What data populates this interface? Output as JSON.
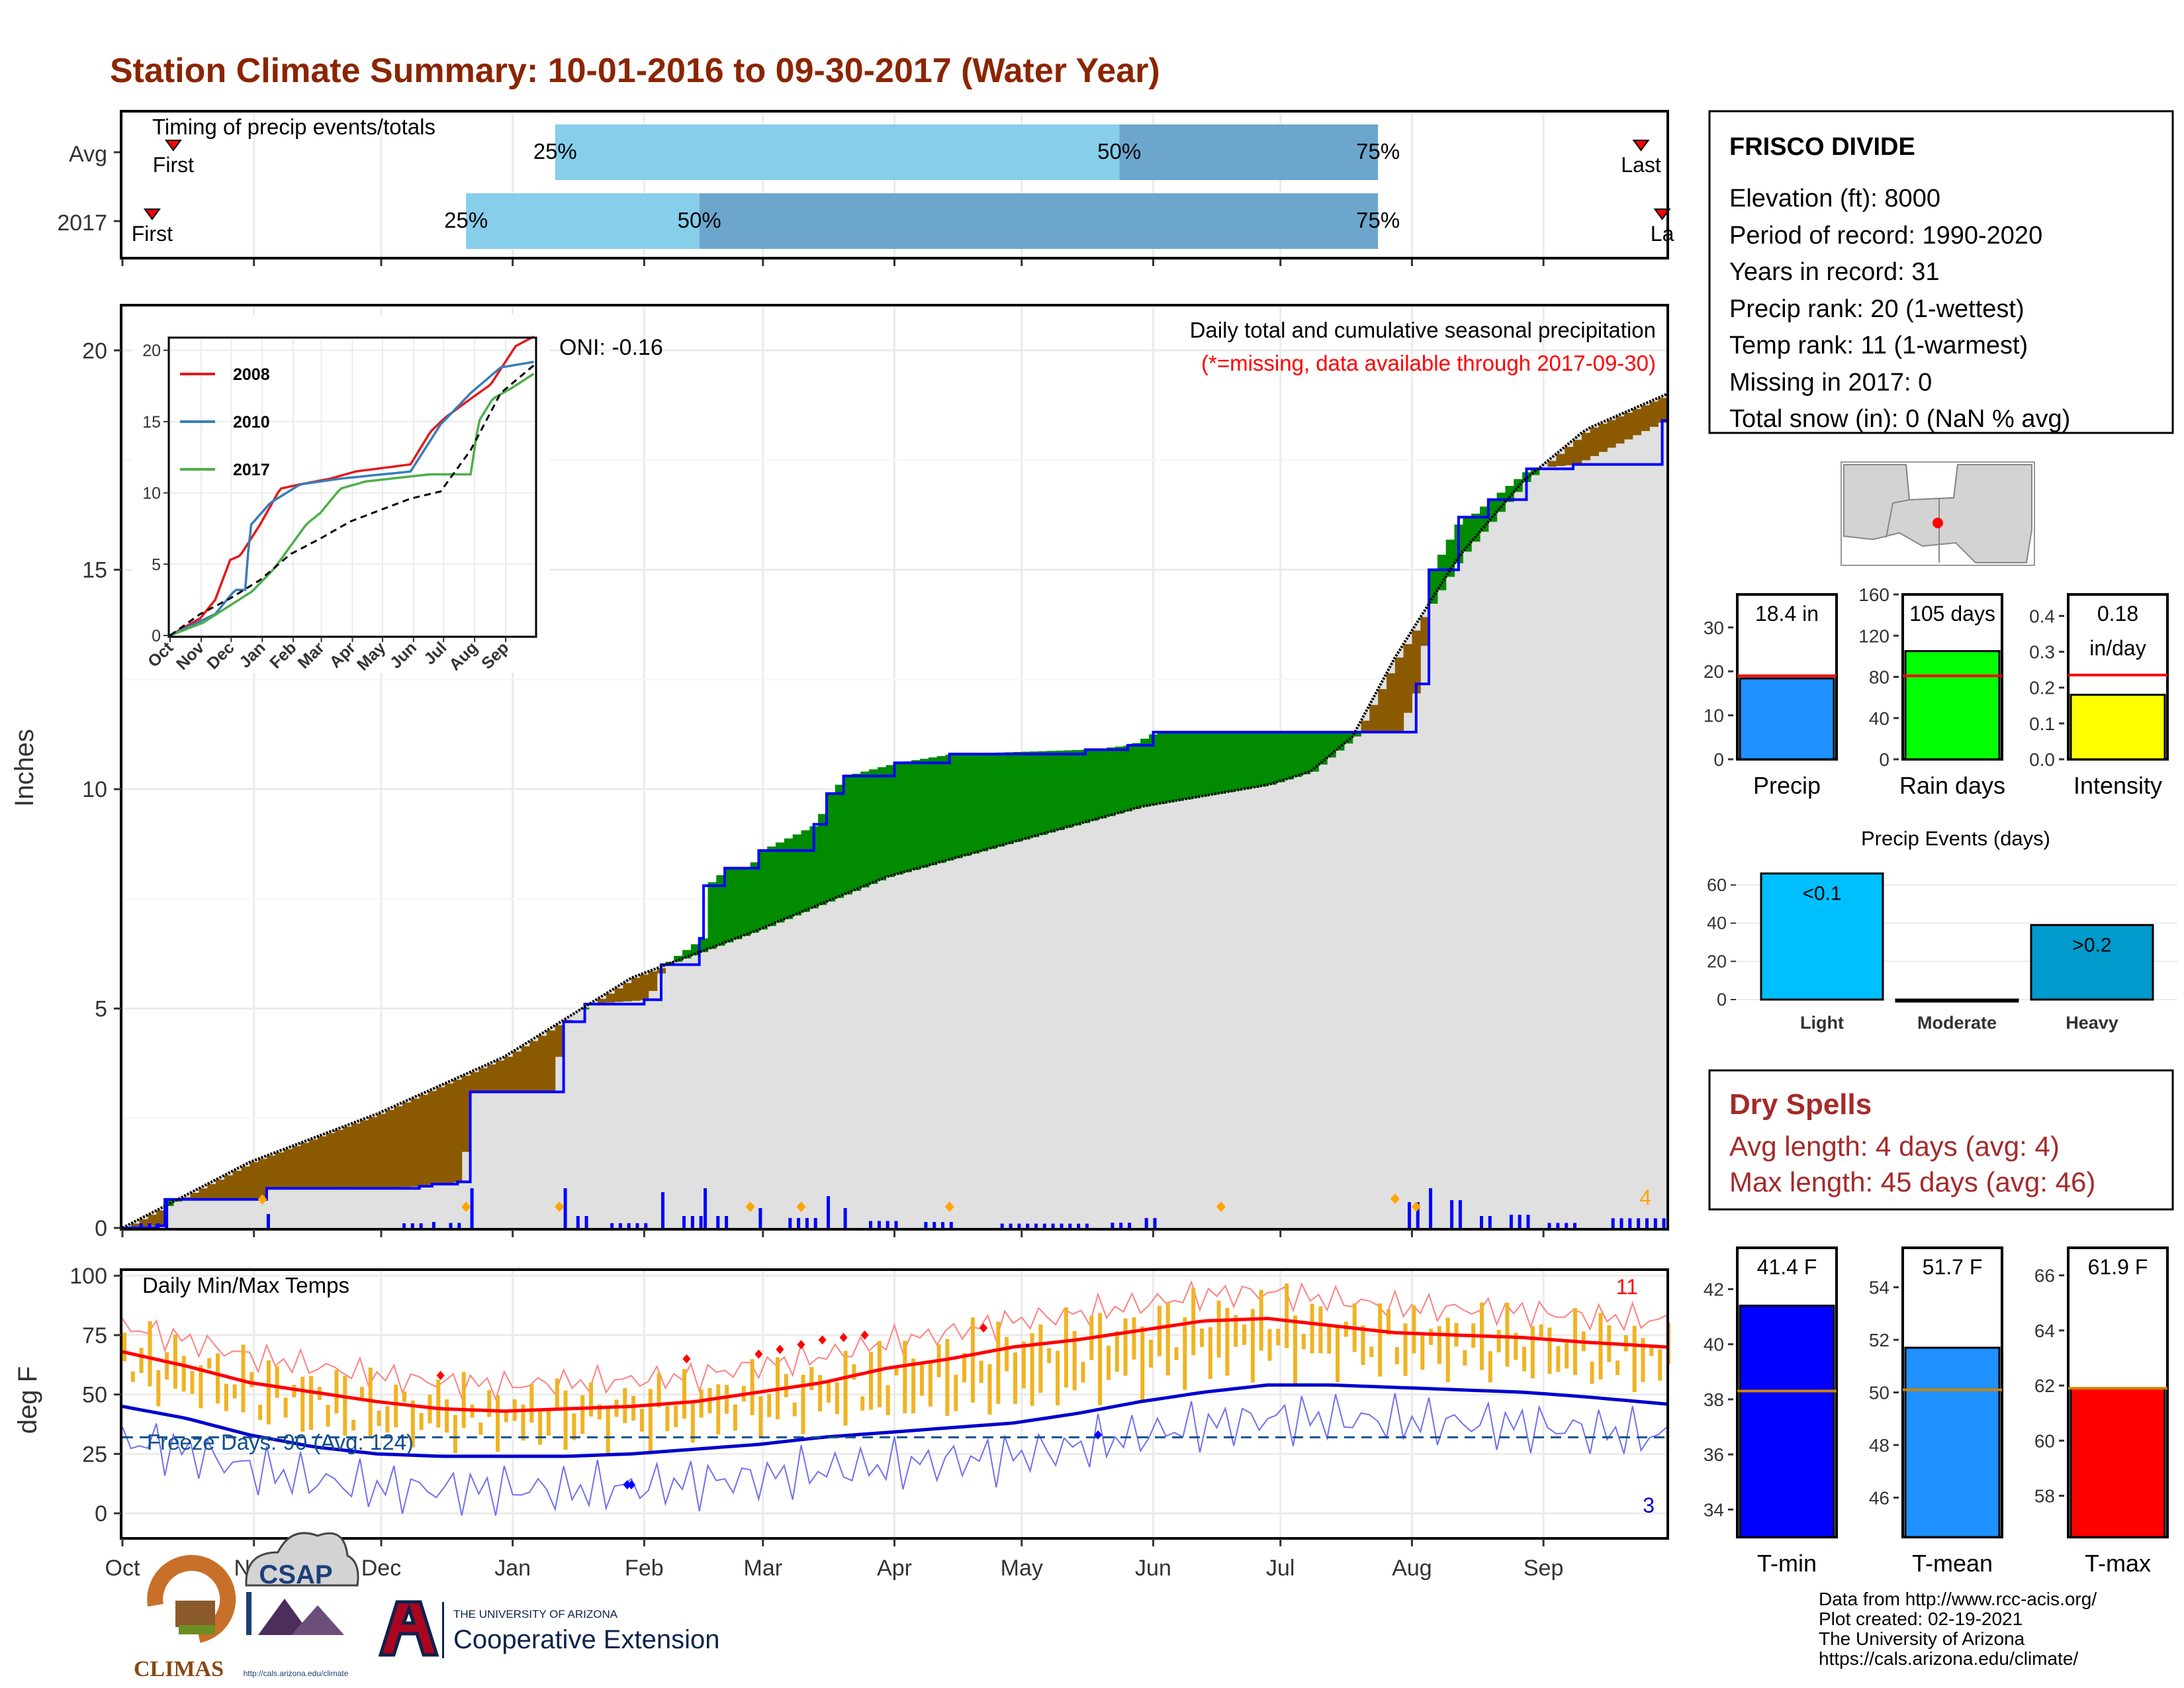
{
  "title": "Station Climate Summary: 10-01-2016 to 09-30-2017 (Water Year)",
  "colors": {
    "title": "#8B2500",
    "q_light": "#87CEEB",
    "q_dark": "#6CA6CD",
    "above_avg": "#008B00",
    "below_avg": "#8B5A00",
    "avg_fill": "#E0E0E0",
    "daily_precip": "#0000FF",
    "temp_range": "#F0B323",
    "tmax_line": "#FF0000",
    "tmin_line": "#0000CD",
    "tmin_bar": "#0000FF",
    "tmean_bar": "#1E90FF",
    "tmax_bar": "#FF0000",
    "precip_bar": "#1E90FF",
    "raindays_bar": "#00FF00",
    "intensity_bar": "#FFFF00",
    "events_light": "#00BFFF",
    "events_heavy": "#009ACD",
    "dry_spell_text": "#A52A2A"
  },
  "timing": {
    "heading": "Timing of precip events/totals",
    "rows": [
      {
        "label": "Avg",
        "first": "First",
        "last": "Last",
        "p25": "25%",
        "p50": "50%",
        "p75": "75%",
        "first_day": 12,
        "p25_day": 102,
        "p50_day": 235,
        "p75_day": 296,
        "last_day": 358
      },
      {
        "label": "2017",
        "first": "First",
        "last": "La",
        "p25": "25%",
        "p50": "50%",
        "p75": "75%",
        "first_day": 7,
        "p25_day": 81,
        "p50_day": 136,
        "p75_day": 296,
        "last_day": 363
      }
    ]
  },
  "main": {
    "ylabel": "Inches",
    "oni": "ONI: -0.16",
    "caption": "Daily total and cumulative seasonal precipitation",
    "caption2": "(*=missing, data available through 2017-09-30)",
    "count_label": "4",
    "y_ticks": [
      "0",
      "5",
      "10",
      "15",
      "20"
    ]
  },
  "months": [
    "Oct",
    "Nov",
    "Dec",
    "Jan",
    "Feb",
    "Mar",
    "Apr",
    "May",
    "Jun",
    "Jul",
    "Aug",
    "Sep"
  ],
  "inset": {
    "legend": [
      "2008",
      "2010",
      "2017"
    ],
    "legend_colors": [
      "#E41A1C",
      "#377EB8",
      "#4DAF4A"
    ],
    "y_ticks": [
      "0",
      "5",
      "10",
      "15",
      "20"
    ],
    "months": [
      "Oct",
      "Nov",
      "Dec",
      "Jan",
      "Feb",
      "Mar",
      "Apr",
      "May",
      "Jun",
      "Jul",
      "Aug",
      "Sep"
    ]
  },
  "temps": {
    "ylabel": "deg F",
    "heading": "Daily Min/Max Temps",
    "freeze": "Freeze Days: 90 (Avg: 124)",
    "count_high": "11",
    "count_low": "3",
    "y_ticks": [
      "0",
      "25",
      "50",
      "75",
      "100"
    ]
  },
  "station": {
    "name": "FRISCO DIVIDE",
    "lines": [
      "Elevation (ft): 8000",
      "Period of record: 1990-2020",
      "Years in record: 31",
      "Precip rank: 20 (1-wettest)",
      "Temp rank: 11 (1-warmest)",
      "Missing in 2017: 0",
      "Total snow (in): 0 (NaN % avg)"
    ]
  },
  "stats": [
    {
      "name": "Precip",
      "value_label": "18.4 in",
      "value": 18.4,
      "avg": 19,
      "ymin": 0,
      "ymax": 37.5,
      "ticks": [
        "0",
        "10",
        "20",
        "30"
      ],
      "tick_vals": [
        0,
        10,
        20,
        30
      ],
      "color": "#1E90FF"
    },
    {
      "name": "Rain days",
      "value_label": "105 days",
      "value": 105,
      "avg": 81,
      "ymin": 0,
      "ymax": 160,
      "ticks": [
        "0",
        "40",
        "80",
        "120",
        "160"
      ],
      "tick_vals": [
        0,
        40,
        80,
        120,
        160
      ],
      "color": "#00FF00"
    },
    {
      "name": "Intensity",
      "value_label": "0.18",
      "value_label2": "in/day",
      "value": 0.18,
      "avg": 0.235,
      "ymin": 0,
      "ymax": 0.46,
      "ticks": [
        "0.0",
        "0.1",
        "0.2",
        "0.3",
        "0.4"
      ],
      "tick_vals": [
        0,
        0.1,
        0.2,
        0.3,
        0.4
      ],
      "color": "#FFFF00"
    }
  ],
  "events": {
    "title": "Precip Events (days)",
    "categories": [
      "Light",
      "Moderate",
      "Heavy"
    ],
    "values": [
      66,
      0,
      39
    ],
    "labels": [
      "<0.1",
      "",
      ">0.2"
    ],
    "y_ticks": [
      "0",
      "20",
      "40",
      "60"
    ]
  },
  "dry_spells": {
    "title": "Dry Spells",
    "avg_line": "Avg length: 4 days (avg: 4)",
    "max_line": "Max length: 45 days (avg: 46)"
  },
  "temp_stats": [
    {
      "name": "T-min",
      "value_label": "41.4 F",
      "value": 41.4,
      "avg": 38.3,
      "ymin": 33,
      "ymax": 43.5,
      "ticks": [
        "34",
        "36",
        "38",
        "40",
        "42"
      ],
      "tick_vals": [
        34,
        36,
        38,
        40,
        42
      ],
      "color": "#0000FF"
    },
    {
      "name": "T-mean",
      "value_label": "51.7 F",
      "value": 51.7,
      "avg": 50.1,
      "ymin": 44.5,
      "ymax": 55.5,
      "ticks": [
        "46",
        "48",
        "50",
        "52",
        "54"
      ],
      "tick_vals": [
        46,
        48,
        50,
        52,
        54
      ],
      "color": "#1E90FF"
    },
    {
      "name": "T-max",
      "value_label": "61.9 F",
      "value": 61.9,
      "avg": 61.9,
      "ymin": 56.5,
      "ymax": 67,
      "ticks": [
        "58",
        "60",
        "62",
        "64",
        "66"
      ],
      "tick_vals": [
        58,
        60,
        62,
        64,
        66
      ],
      "color": "#FF0000"
    }
  ],
  "footer": {
    "lines": [
      "Data from http://www.rcc-acis.org/",
      "Plot created: 02-19-2021",
      "The University of Arizona",
      "https://cals.arizona.edu/climate/"
    ],
    "climas": "CLIMAS",
    "csap": "CSAP",
    "csap_url": "http://cals.arizona.edu/climate",
    "ua_small": "THE UNIVERSITY OF ARIZONA",
    "ua_big": "Cooperative Extension"
  },
  "chart_data": [
    {
      "type": "area",
      "title": "Daily total and cumulative seasonal precipitation",
      "ylabel": "Inches",
      "ylim": [
        0,
        21
      ],
      "x_unit": "day of water year (Oct 1 = 0)",
      "series": [
        {
          "name": "2017 cumulative",
          "x": [
            0,
            8,
            10,
            33,
            34,
            60,
            70,
            73,
            79,
            82,
            100,
            104,
            109,
            123,
            127,
            136,
            137,
            142,
            147,
            150,
            163,
            166,
            170,
            182,
            195,
            227,
            237,
            243,
            245,
            259,
            300,
            305,
            308,
            315,
            317,
            322,
            331,
            342,
            363,
            364
          ],
          "y": [
            0,
            0.05,
            0.65,
            0.65,
            0.9,
            0.9,
            0.95,
            1.0,
            1.05,
            3.1,
            3.1,
            4.7,
            5.1,
            5.2,
            6.0,
            6.6,
            7.8,
            8.2,
            8.2,
            8.6,
            9.2,
            9.9,
            10.3,
            10.6,
            10.8,
            10.9,
            11.0,
            11.3,
            11.3,
            11.3,
            11.3,
            12.4,
            15.0,
            16.2,
            16.2,
            16.6,
            17.3,
            17.4,
            18.4,
            18.4
          ]
        },
        {
          "name": "Avg cumulative",
          "x": [
            0,
            30,
            60,
            90,
            120,
            150,
            180,
            210,
            240,
            270,
            280,
            290,
            300,
            315,
            330,
            345,
            364
          ],
          "y": [
            0,
            1.5,
            2.6,
            3.9,
            5.7,
            6.8,
            8.0,
            8.8,
            9.6,
            10.1,
            10.4,
            11.2,
            13.0,
            15.3,
            17.0,
            18.2,
            19.0
          ]
        }
      ]
    },
    {
      "type": "line",
      "title": "",
      "ylim": [
        0,
        21
      ],
      "series": [
        {
          "name": "2008",
          "x": [
            0,
            30,
            45,
            60,
            70,
            90,
            110,
            130,
            160,
            185,
            240,
            260,
            275,
            300,
            320,
            345,
            364
          ],
          "y": [
            0,
            1.2,
            2.5,
            5.3,
            5.6,
            7.8,
            10.3,
            10.6,
            11.0,
            11.5,
            12.0,
            14.3,
            15.3,
            16.6,
            17.6,
            20.3,
            21.0
          ]
        },
        {
          "name": "2010",
          "x": [
            0,
            45,
            65,
            75,
            80,
            100,
            130,
            170,
            240,
            270,
            300,
            330,
            364
          ],
          "y": [
            0,
            1.5,
            3.2,
            3.2,
            7.7,
            9.3,
            10.6,
            11.0,
            11.5,
            14.8,
            17.0,
            18.8,
            19.2
          ]
        },
        {
          "name": "2017",
          "x": [
            0,
            33,
            82,
            104,
            136,
            150,
            170,
            195,
            259,
            300,
            308,
            322,
            342,
            364
          ],
          "y": [
            0,
            0.9,
            3.1,
            4.7,
            7.8,
            8.6,
            10.3,
            10.8,
            11.3,
            11.3,
            15.0,
            16.6,
            17.4,
            18.4
          ]
        },
        {
          "name": "Avg",
          "x": [
            0,
            30,
            60,
            90,
            120,
            150,
            180,
            210,
            240,
            270,
            300,
            330,
            364
          ],
          "y": [
            0,
            1.5,
            2.6,
            3.9,
            5.7,
            6.8,
            8.0,
            8.8,
            9.6,
            10.1,
            13.0,
            17.0,
            19.0
          ]
        }
      ]
    },
    {
      "type": "line",
      "title": "Daily Min/Max Temps",
      "ylabel": "deg F",
      "ylim": [
        -10,
        102
      ],
      "freeze_line": 32,
      "series": [
        {
          "name": "Avg Tmax",
          "x": [
            0,
            15,
            30,
            45,
            60,
            75,
            90,
            105,
            120,
            135,
            150,
            165,
            180,
            195,
            210,
            225,
            240,
            255,
            270,
            285,
            300,
            315,
            330,
            345,
            364
          ],
          "y": [
            68,
            62,
            55,
            51,
            47,
            44,
            43,
            44,
            45,
            47,
            51,
            55,
            61,
            65,
            70,
            73,
            77,
            81,
            82,
            79,
            76,
            75,
            74,
            72,
            70
          ]
        },
        {
          "name": "Avg Tmin",
          "x": [
            0,
            15,
            30,
            45,
            60,
            75,
            90,
            105,
            120,
            135,
            150,
            165,
            180,
            195,
            210,
            225,
            240,
            255,
            270,
            285,
            300,
            315,
            330,
            345,
            364
          ],
          "y": [
            45,
            40,
            33,
            28,
            25,
            24,
            24,
            24,
            25,
            27,
            29,
            32,
            34,
            36,
            38,
            42,
            47,
            51,
            54,
            54,
            53,
            52,
            51,
            49,
            46
          ]
        }
      ]
    },
    {
      "type": "bar",
      "title": "Precip Events (days)",
      "categories": [
        "Light",
        "Moderate",
        "Heavy"
      ],
      "values": [
        66,
        0,
        39
      ],
      "ylim": [
        0,
        70
      ]
    },
    {
      "type": "bar",
      "categories": [
        "Precip",
        "Rain days",
        "Intensity"
      ],
      "values": [
        18.4,
        105,
        0.18
      ],
      "avg": [
        19,
        81,
        0.235
      ]
    },
    {
      "type": "bar",
      "categories": [
        "T-min",
        "T-mean",
        "T-max"
      ],
      "values": [
        41.4,
        51.7,
        61.9
      ],
      "avg": [
        38.3,
        50.1,
        61.9
      ]
    }
  ]
}
